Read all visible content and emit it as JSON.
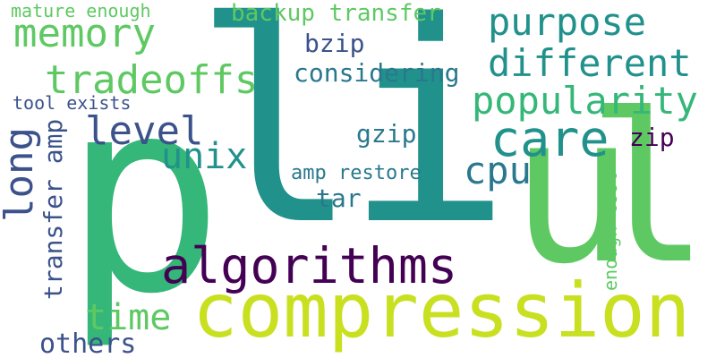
{
  "words": {
    "p": "p",
    "l": "l",
    "i": "i",
    "u": "u",
    "l2": "l",
    "compression": "compression",
    "algorithms": "algorithms",
    "care": "care",
    "purpose": "purpose",
    "different": "different",
    "popularity": "popularity",
    "memory": "memory",
    "tradeoffs": "tradeoffs",
    "level": "level",
    "unix": "unix",
    "long": "long",
    "cpu": "cpu",
    "considering": "considering",
    "bzip": "bzip",
    "gzip": "gzip",
    "zip": "zip",
    "backup_transfer": "backup transfer",
    "mature_enough": "mature enough",
    "tool_exists": "tool exists",
    "transfer_amp": "transfer amp",
    "amp_restore": "amp restore",
    "tar": "tar",
    "enough_tool": "enough tool",
    "time": "time",
    "others": "others"
  },
  "colors": {
    "teal": "#21918c",
    "green": "#35b779",
    "lightgreen": "#5ec962",
    "lime": "#c8e020",
    "purple": "#440154",
    "indigo": "#3b528b",
    "darkpurple": "#482878",
    "seafoam": "#2a788e"
  }
}
